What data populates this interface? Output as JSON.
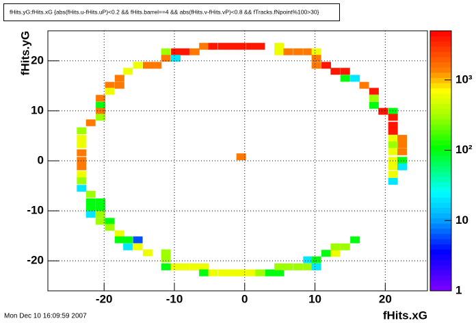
{
  "chart_data": {
    "type": "heatmap2d",
    "title": "fHits.yG:fHits.xG {abs(fHits.u-fHits.uP)<0.2 && fHits.barrel==4 && abs(fHits.v-fHits.vP)<0.8 && fTracks.fNpoint%100>30}",
    "x_label": "fHits.xG",
    "y_label": "fHits.yG",
    "timestamp": "Mon Dec 10 16:09:59 2007",
    "xlim": [
      -28,
      26
    ],
    "ylim": [
      -26,
      26
    ],
    "xticks": [
      -20,
      -10,
      0,
      10,
      20
    ],
    "yticks": [
      -20,
      -10,
      0,
      10,
      20
    ],
    "zlim": [
      1,
      5000
    ],
    "zlog": true,
    "zticks": [
      1,
      10,
      {
        "value": 100,
        "label": "10²"
      },
      {
        "value": 1000,
        "label": "10³"
      }
    ],
    "grid": true,
    "x": [
      -11.2,
      -9.8,
      -8.5,
      -7.1,
      -5.8,
      -4.5,
      -3.1,
      -1.8,
      -0.5,
      0.9,
      2.2,
      4.9,
      4.9,
      6.2,
      7.6,
      9.0,
      10.2,
      -9.8,
      -11.2,
      -12.5,
      -13.8,
      -15.2,
      -16.6,
      -17.8,
      -17.8,
      -19.2,
      -19.2,
      -20.5,
      -20.5,
      -20.5,
      -20.5,
      -21.9,
      -23.2,
      -23.2,
      -23.2,
      -23.2,
      -23.2,
      -23.2,
      -23.2,
      -23.2,
      -23.2,
      -21.9,
      -21.9,
      -20.5,
      -21.9,
      -20.5,
      -21.9,
      -20.5,
      -20.5,
      -19.2,
      -19.2,
      -17.8,
      -17.8,
      -16.6,
      -15.2,
      -16.6,
      -15.2,
      -13.8,
      -11.2,
      -11.2,
      -11.2,
      -9.8,
      -8.5,
      -7.1,
      -5.8,
      -5.8,
      -4.5,
      -3.1,
      -1.8,
      -0.5,
      0.9,
      2.2,
      3.6,
      4.9,
      4.9,
      6.2,
      7.6,
      9.0,
      10.2,
      9.0,
      10.2,
      11.6,
      12.9,
      12.9,
      14.3,
      15.7,
      10.2,
      10.2,
      11.6,
      12.9,
      14.3,
      14.3,
      15.7,
      17.0,
      18.4,
      18.4,
      18.4,
      19.7,
      21.1,
      21.1,
      21.1,
      21.1,
      21.1,
      22.4,
      22.4,
      21.1,
      21.1,
      22.4,
      21.1,
      22.4,
      21.1,
      22.4,
      21.1,
      21.1,
      -0.5
    ],
    "y": [
      21.8,
      21.8,
      21.8,
      21.8,
      22.9,
      22.9,
      22.9,
      22.9,
      22.9,
      22.9,
      22.9,
      22.9,
      21.8,
      21.8,
      21.8,
      21.8,
      21.8,
      20.5,
      20.5,
      19.1,
      19.1,
      19.1,
      17.9,
      16.5,
      15.1,
      15.1,
      13.9,
      12.5,
      11.1,
      9.9,
      8.7,
      7.6,
      6.0,
      4.5,
      3.2,
      1.6,
      0.1,
      -1.2,
      -2.7,
      -4.0,
      -5.5,
      -6.7,
      -8.2,
      -8.2,
      -9.5,
      -9.5,
      -10.7,
      -10.7,
      -12.1,
      -12.1,
      -13.3,
      -14.6,
      -15.8,
      -15.8,
      -15.8,
      -17.2,
      -17.2,
      -18.4,
      -18.4,
      -19.6,
      -21.2,
      -21.2,
      -21.2,
      -21.2,
      -21.2,
      -22.4,
      -22.4,
      -22.4,
      -22.4,
      -22.4,
      -22.4,
      -22.4,
      -22.4,
      -22.4,
      -21.2,
      -21.2,
      -21.2,
      -21.2,
      -21.2,
      -19.8,
      -19.8,
      -18.5,
      -18.5,
      -17.2,
      -17.2,
      -15.8,
      20.5,
      19.1,
      19.1,
      17.9,
      17.9,
      16.5,
      16.5,
      15.1,
      13.9,
      12.5,
      11.1,
      9.9,
      9.9,
      8.7,
      7.1,
      5.9,
      4.5,
      4.5,
      3.2,
      3.2,
      1.8,
      1.8,
      0.1,
      0.1,
      -1.2,
      -1.2,
      -2.7,
      -4.1,
      0.8
    ],
    "values": [
      300,
      4000,
      4000,
      1500,
      1500,
      4000,
      4000,
      4000,
      4000,
      4000,
      4000,
      600,
      600,
      1500,
      1500,
      1500,
      600,
      20,
      1500,
      1500,
      1500,
      600,
      600,
      1500,
      1500,
      1500,
      600,
      1500,
      100,
      1500,
      300,
      1500,
      300,
      600,
      600,
      1500,
      1500,
      1500,
      600,
      300,
      20,
      300,
      100,
      100,
      100,
      100,
      20,
      300,
      300,
      100,
      300,
      600,
      100,
      100,
      6,
      20,
      600,
      600,
      300,
      300,
      100,
      600,
      600,
      600,
      600,
      100,
      600,
      600,
      600,
      600,
      600,
      300,
      100,
      100,
      300,
      300,
      300,
      300,
      20,
      20,
      100,
      100,
      600,
      300,
      300,
      100,
      1500,
      1500,
      4000,
      4000,
      4000,
      100,
      20,
      1500,
      4000,
      300,
      100,
      4000,
      100,
      4000,
      4000,
      4000,
      600,
      1500,
      1500,
      300,
      600,
      1500,
      600,
      100,
      600,
      20,
      600,
      20,
      1500
    ]
  }
}
